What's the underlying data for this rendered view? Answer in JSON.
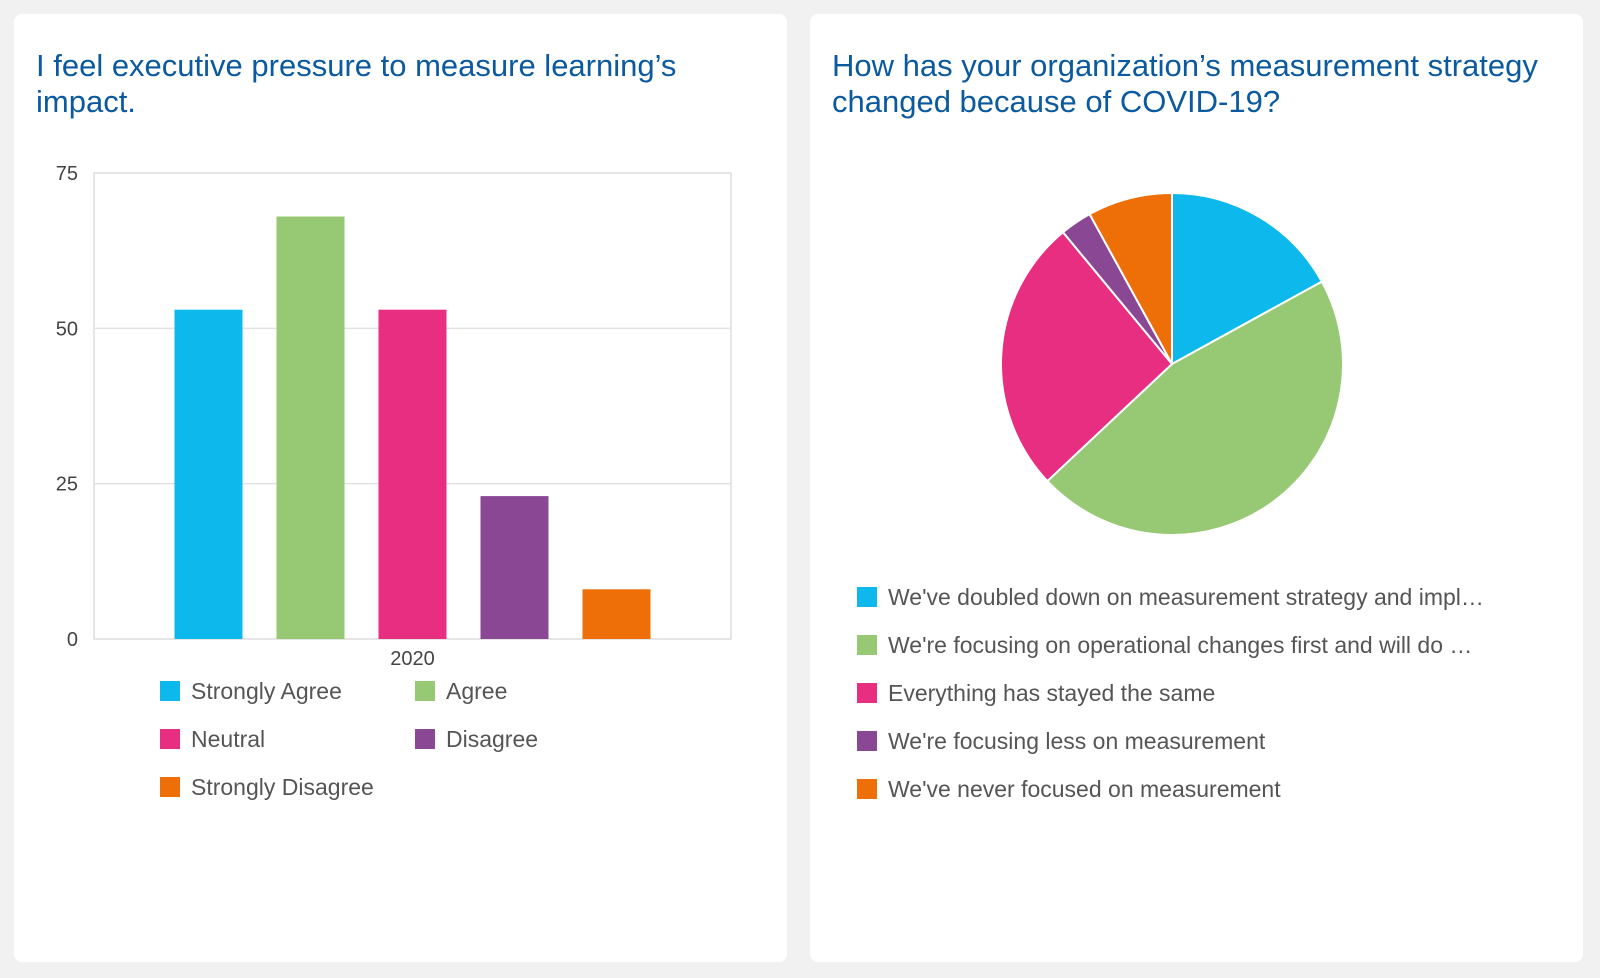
{
  "colors": {
    "blue": "#0db8ec",
    "green": "#97c873",
    "pink": "#e72e80",
    "purple": "#8a4894",
    "orange": "#ee6e08",
    "title": "#0b5aa0"
  },
  "left_card": {
    "title": "I feel executive pressure to measure learning’s impact."
  },
  "right_card": {
    "title": "How has your organization’s measurement strategy changed because of COVID-19?"
  },
  "chart_data": [
    {
      "type": "bar",
      "title": "I feel executive pressure to measure learning’s impact.",
      "categories": [
        "2020"
      ],
      "series": [
        {
          "name": "Strongly Agree",
          "values": [
            53
          ],
          "color": "#0db8ec"
        },
        {
          "name": "Agree",
          "values": [
            68
          ],
          "color": "#97c873"
        },
        {
          "name": "Neutral",
          "values": [
            53
          ],
          "color": "#e72e80"
        },
        {
          "name": "Disagree",
          "values": [
            23
          ],
          "color": "#8a4894"
        },
        {
          "name": "Strongly Disagree",
          "values": [
            8
          ],
          "color": "#ee6e08"
        }
      ],
      "ylim": [
        0,
        75
      ],
      "yticks": [
        "0",
        "25",
        "50",
        "75"
      ],
      "grid": true,
      "legend": "bottom"
    },
    {
      "type": "pie",
      "title": "How has your organization’s measurement strategy changed because of COVID-19?",
      "slices": [
        {
          "label": "We've doubled down on measurement strategy and impl…",
          "value": 17,
          "color": "#0db8ec"
        },
        {
          "label": "We're focusing on operational changes first and will do …",
          "value": 46,
          "color": "#97c873"
        },
        {
          "label": "Everything has stayed the same",
          "value": 26,
          "color": "#e72e80"
        },
        {
          "label": "We're focusing less on measurement",
          "value": 3,
          "color": "#8a4894"
        },
        {
          "label": "We've never focused on measurement",
          "value": 8,
          "color": "#ee6e08"
        }
      ],
      "legend": "bottom"
    }
  ]
}
